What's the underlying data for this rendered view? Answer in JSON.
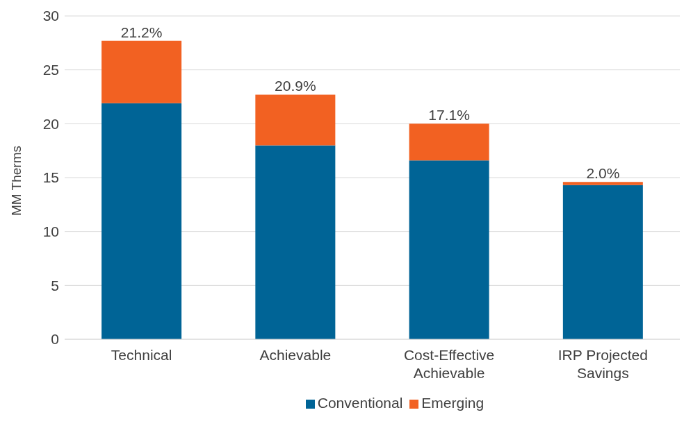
{
  "chart_data": {
    "type": "bar",
    "stacked": true,
    "categories": [
      "Technical",
      "Achievable",
      "Cost-Effective Achievable",
      "IRP Projected Savings"
    ],
    "series": [
      {
        "name": "Conventional",
        "color": "#006496",
        "values": [
          21.9,
          18.0,
          16.6,
          14.3
        ]
      },
      {
        "name": "Emerging",
        "color": "#f26122",
        "values": [
          5.8,
          4.7,
          3.4,
          0.3
        ]
      }
    ],
    "ylabel": "MM Therms",
    "ylim": [
      0,
      30
    ],
    "yticks": [
      0,
      5,
      10,
      15,
      20,
      25,
      30
    ],
    "grid": "y",
    "legend": "bottom",
    "annotations": [
      {
        "text": "21.2%",
        "x": "Technical",
        "y": 27.7
      },
      {
        "text": "20.9%",
        "x": "Achievable",
        "y": 22.7
      },
      {
        "text": "17.1%",
        "x": "Cost-Effective Achievable",
        "y": 20.0
      },
      {
        "text": "2.0%",
        "x": "IRP Projected Savings",
        "y": 14.6
      }
    ]
  }
}
